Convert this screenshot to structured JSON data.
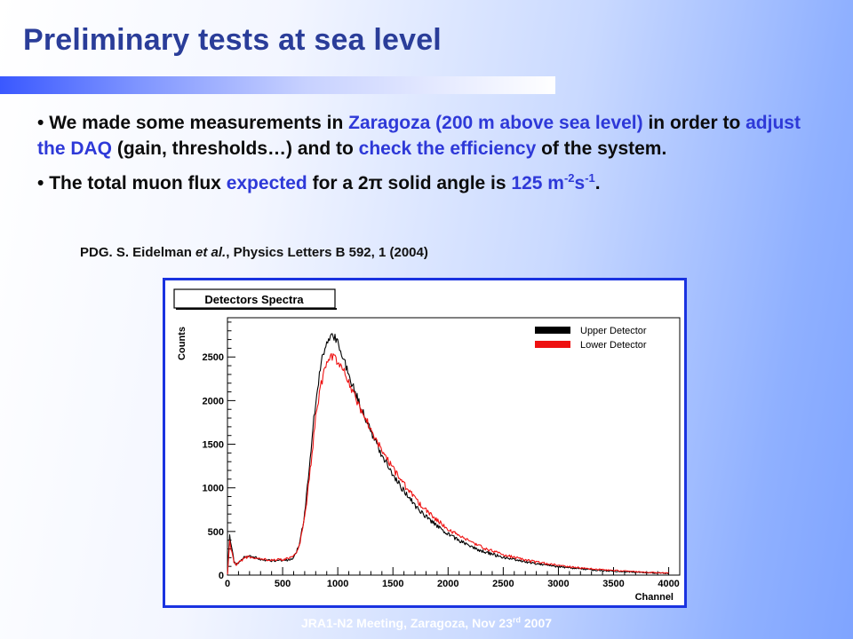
{
  "slide": {
    "title": "Preliminary tests at sea level",
    "bullet1": {
      "p1": "We made some measurements in ",
      "h1": "Zaragoza (200 m above sea level)",
      "p2": " in order to ",
      "h2": "adjust the DAQ",
      "p3": " (gain, thresholds…) and to ",
      "h3": "check the efficiency",
      "p4": " of the system."
    },
    "bullet2": {
      "p1": "The total muon flux ",
      "h1": "expected",
      "p2": " for a 2",
      "pi": "π",
      "p3": " solid angle is ",
      "h2_base": "125 m",
      "h2_sup1": "-2",
      "h2_mid": "s",
      "h2_sup2": "-1",
      "p4": "."
    },
    "reference": {
      "p1": "PDG. S. Eidelman ",
      "etal": "et al.",
      "p2": ", Physics Letters B 592, 1 (2004)"
    },
    "footer": {
      "base": "JRA1-N2 Meeting, Zaragoza, Nov 23",
      "sup": "rd",
      "end": " 2007"
    },
    "colors": {
      "title": "#2a3d99",
      "highlight": "#2e39d8",
      "frame": "#1a33e0"
    }
  },
  "chart_data": {
    "type": "line",
    "title": "Detectors Spectra",
    "xlabel": "Channel",
    "ylabel": "Counts",
    "xlim": [
      0,
      4100
    ],
    "ylim": [
      0,
      2950
    ],
    "xticks": [
      0,
      500,
      1000,
      1500,
      2000,
      2500,
      3000,
      3500,
      4000
    ],
    "yticks": [
      0,
      500,
      1000,
      1500,
      2000,
      2500
    ],
    "grid": false,
    "legend_position": "top-right",
    "series": [
      {
        "name": "Upper Detector",
        "color": "#000000",
        "x": [
          0,
          20,
          40,
          60,
          80,
          100,
          150,
          200,
          250,
          300,
          350,
          400,
          450,
          500,
          550,
          600,
          650,
          700,
          750,
          800,
          850,
          900,
          950,
          1000,
          1050,
          1100,
          1150,
          1200,
          1300,
          1400,
          1500,
          1600,
          1700,
          1800,
          1900,
          2000,
          2100,
          2200,
          2300,
          2400,
          2500,
          2750,
          3000,
          3250,
          3500,
          3750,
          4000
        ],
        "y": [
          10,
          450,
          300,
          150,
          120,
          140,
          200,
          220,
          200,
          180,
          170,
          165,
          165,
          170,
          175,
          200,
          330,
          700,
          1350,
          2000,
          2450,
          2700,
          2760,
          2650,
          2500,
          2300,
          2120,
          1950,
          1650,
          1380,
          1150,
          960,
          800,
          670,
          560,
          470,
          395,
          330,
          280,
          240,
          205,
          140,
          95,
          65,
          45,
          30,
          20
        ]
      },
      {
        "name": "Lower Detector",
        "color": "#ee1111",
        "x": [
          0,
          20,
          40,
          60,
          80,
          100,
          150,
          200,
          250,
          300,
          350,
          400,
          450,
          500,
          550,
          600,
          650,
          700,
          750,
          800,
          850,
          900,
          950,
          1000,
          1050,
          1100,
          1150,
          1200,
          1300,
          1400,
          1500,
          1600,
          1700,
          1800,
          1900,
          2000,
          2100,
          2200,
          2300,
          2400,
          2500,
          2750,
          3000,
          3250,
          3500,
          3750,
          4000
        ],
        "y": [
          10,
          380,
          260,
          140,
          120,
          140,
          195,
          210,
          195,
          180,
          175,
          175,
          175,
          180,
          185,
          215,
          330,
          650,
          1200,
          1800,
          2200,
          2430,
          2500,
          2450,
          2340,
          2200,
          2060,
          1920,
          1670,
          1430,
          1220,
          1040,
          880,
          740,
          630,
          530,
          450,
          380,
          325,
          275,
          235,
          160,
          110,
          75,
          52,
          35,
          22
        ]
      }
    ]
  }
}
